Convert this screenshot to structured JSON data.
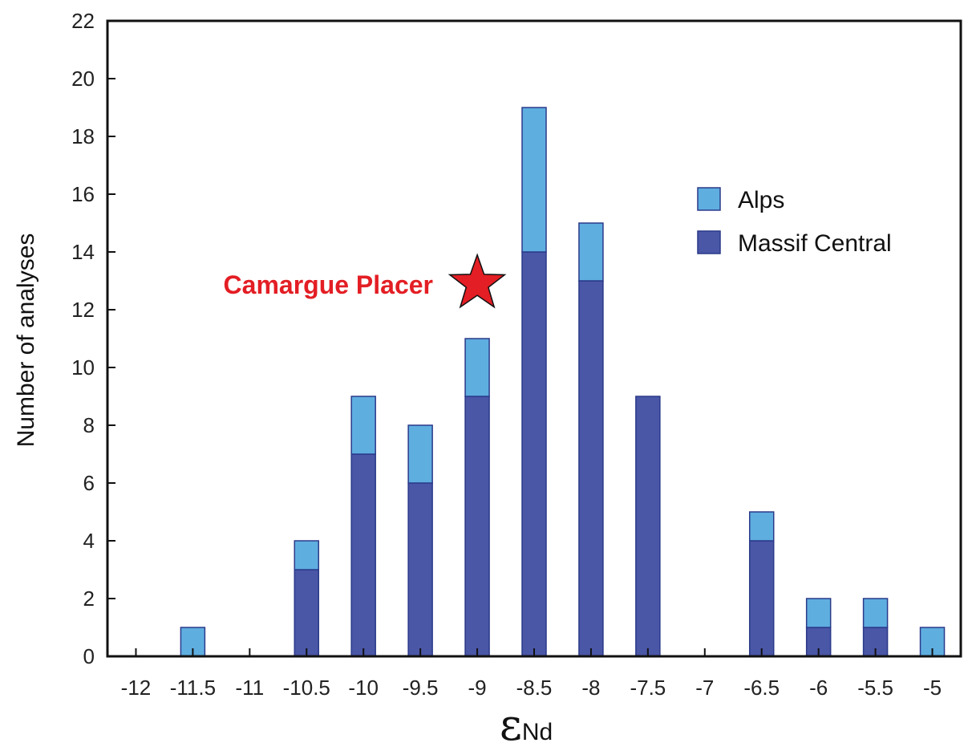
{
  "chart_data": {
    "type": "bar",
    "stacked": true,
    "title": "",
    "xlabel_symbol": "ε",
    "xlabel_subscript": "Nd",
    "ylabel": "Number of analyses",
    "ylim": [
      0,
      22
    ],
    "yticks": [
      "0",
      "2",
      "4",
      "6",
      "8",
      "10",
      "12",
      "14",
      "16",
      "18",
      "20",
      "22"
    ],
    "xlim": [
      -12.25,
      -4.75
    ],
    "xticks": [
      "-12",
      "-11.5",
      "-11",
      "-10.5",
      "-10",
      "-9.5",
      "-9",
      "-8.5",
      "-8",
      "-7.5",
      "-7",
      "-6.5",
      "-6",
      "-5.5",
      "-5"
    ],
    "categories": [
      -11.5,
      -10.5,
      -10,
      -9.5,
      -9,
      -8.5,
      -8,
      -7.5,
      -6.5,
      -6,
      -5.5,
      -5
    ],
    "series": [
      {
        "name": "Massif Central",
        "color": "#4a56a6",
        "values": [
          0,
          3,
          7,
          6,
          9,
          14,
          13,
          9,
          4,
          1,
          1,
          0
        ]
      },
      {
        "name": "Alps",
        "color": "#5faee0",
        "values": [
          1,
          1,
          2,
          2,
          2,
          5,
          2,
          0,
          1,
          1,
          1,
          1
        ]
      }
    ],
    "legend_position": "top-right",
    "legend_order": [
      "Alps",
      "Massif Central"
    ],
    "grid": false,
    "annotation": {
      "text": "Camargue Placer",
      "color": "#e31e24",
      "marker": "star",
      "x": -9,
      "y": 12.9
    }
  }
}
